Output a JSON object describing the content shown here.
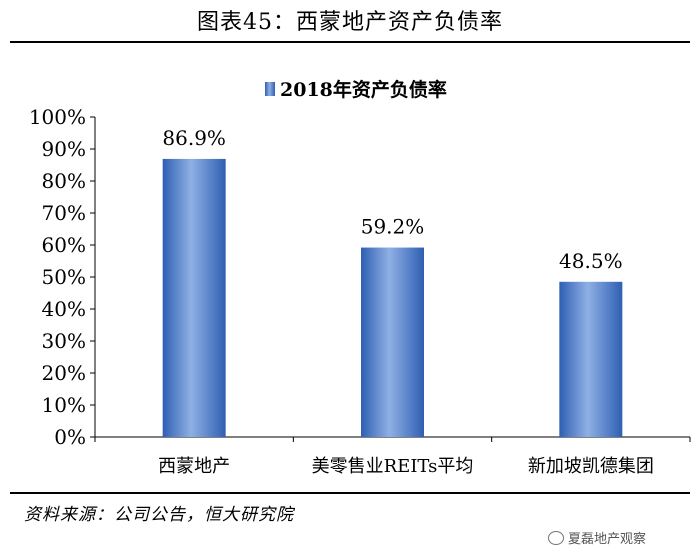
{
  "figure_title": "图表45：西蒙地产资产负债率",
  "source_text": "资料来源：公司公告，恒大研究院",
  "watermark_text": "夏磊地产观察",
  "chart_data": {
    "type": "bar",
    "title": "2018年资产负债率",
    "legend_position": "top",
    "series": [
      {
        "name": "2018年资产负债率",
        "values": [
          86.9,
          59.2,
          48.5
        ],
        "color": "#4472C4"
      }
    ],
    "categories": [
      "西蒙地产",
      "美零售业REITs平均",
      "新加坡凯德集团"
    ],
    "value_labels": [
      "86.9%",
      "59.2%",
      "48.5%"
    ],
    "yticks": [
      "0%",
      "10%",
      "20%",
      "30%",
      "40%",
      "50%",
      "60%",
      "70%",
      "80%",
      "90%",
      "100%"
    ],
    "ylim": [
      0,
      100
    ],
    "grid": false
  }
}
